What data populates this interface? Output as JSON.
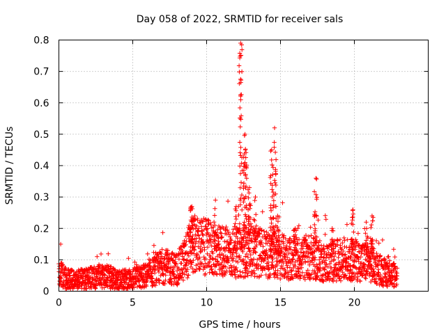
{
  "chart_data": {
    "type": "scatter",
    "title": "Day 058 of 2022, SRMTID for receiver sals",
    "xlabel": "GPS time / hours",
    "ylabel": "SRMTID / TECUs",
    "xlim": [
      0,
      25
    ],
    "ylim": [
      0,
      0.8
    ],
    "x_ticks": [
      "0",
      "5",
      "10",
      "15",
      "20"
    ],
    "y_ticks": [
      "0",
      "0.1",
      "0.2",
      "0.3",
      "0.4",
      "0.5",
      "0.6",
      "0.7",
      "0.8"
    ],
    "grid": true,
    "marker": "+",
    "color": "#ff0000",
    "x_max_data": 22.9,
    "baseline": [
      [
        0.0,
        0.06
      ],
      [
        0.5,
        0.04
      ],
      [
        1.0,
        0.035
      ],
      [
        2.0,
        0.04
      ],
      [
        3.0,
        0.05
      ],
      [
        4.0,
        0.035
      ],
      [
        5.0,
        0.04
      ],
      [
        6.0,
        0.05
      ],
      [
        7.0,
        0.08
      ],
      [
        8.0,
        0.07
      ],
      [
        8.5,
        0.1
      ],
      [
        9.0,
        0.15
      ],
      [
        10.0,
        0.14
      ],
      [
        11.0,
        0.13
      ],
      [
        12.0,
        0.12
      ],
      [
        13.0,
        0.13
      ],
      [
        14.0,
        0.12
      ],
      [
        15.0,
        0.11
      ],
      [
        16.0,
        0.1
      ],
      [
        17.0,
        0.11
      ],
      [
        18.0,
        0.09
      ],
      [
        19.0,
        0.1
      ],
      [
        20.0,
        0.1
      ],
      [
        21.0,
        0.09
      ],
      [
        22.0,
        0.06
      ],
      [
        22.9,
        0.05
      ]
    ],
    "spikes": [
      {
        "x": 9.0,
        "ymax": 0.27,
        "n": 25
      },
      {
        "x": 10.6,
        "ymax": 0.29,
        "n": 12
      },
      {
        "x": 12.0,
        "ymax": 0.27,
        "n": 12
      },
      {
        "x": 12.3,
        "ymax": 0.79,
        "n": 45
      },
      {
        "x": 12.6,
        "ymax": 0.5,
        "n": 45
      },
      {
        "x": 12.9,
        "ymax": 0.33,
        "n": 20
      },
      {
        "x": 13.3,
        "ymax": 0.3,
        "n": 12
      },
      {
        "x": 14.4,
        "ymax": 0.45,
        "n": 30
      },
      {
        "x": 14.6,
        "ymax": 0.52,
        "n": 30
      },
      {
        "x": 14.8,
        "ymax": 0.24,
        "n": 15
      },
      {
        "x": 16.0,
        "ymax": 0.2,
        "n": 10
      },
      {
        "x": 17.4,
        "ymax": 0.36,
        "n": 20
      },
      {
        "x": 18.5,
        "ymax": 0.2,
        "n": 10
      },
      {
        "x": 19.9,
        "ymax": 0.26,
        "n": 20
      },
      {
        "x": 20.8,
        "ymax": 0.22,
        "n": 10
      },
      {
        "x": 21.2,
        "ymax": 0.24,
        "n": 15
      }
    ]
  }
}
